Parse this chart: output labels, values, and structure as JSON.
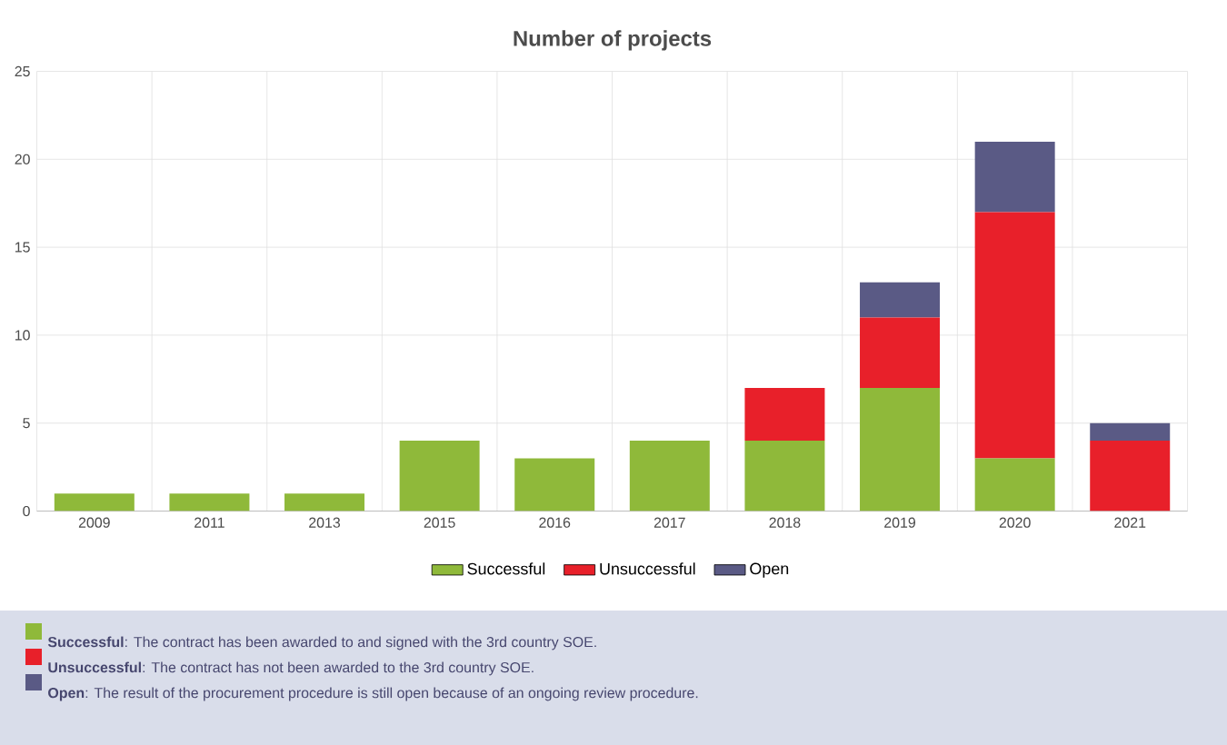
{
  "chart_data": {
    "type": "bar",
    "title": "Number of projects",
    "stacked": true,
    "grid": true,
    "legend": "bottom",
    "categories": [
      "2009",
      "2011",
      "2013",
      "2015",
      "2016",
      "2017",
      "2018",
      "2019",
      "2020",
      "2021"
    ],
    "series": [
      {
        "name": "Successful",
        "color": "#8fb93a",
        "values": [
          1,
          1,
          1,
          4,
          3,
          4,
          4,
          7,
          3,
          0
        ]
      },
      {
        "name": "Unsuccessful",
        "color": "#e8202a",
        "values": [
          0,
          0,
          0,
          0,
          0,
          0,
          3,
          4,
          14,
          4
        ]
      },
      {
        "name": "Open",
        "color": "#5a5a85",
        "values": [
          0,
          0,
          0,
          0,
          0,
          0,
          0,
          2,
          4,
          1
        ]
      }
    ],
    "ylim": [
      0,
      25
    ],
    "yticks": [
      0,
      5,
      10,
      15,
      20,
      25
    ],
    "annotations": [
      "**Successful**: The contract has been awarded to and signed with the 3rd country SOE.",
      "**Unsuccessful**: The contract has not been awarded to the 3rd country SOE.",
      "**Open**: The result of the procurement procedure is still open because of an ongoing review procedure."
    ]
  }
}
